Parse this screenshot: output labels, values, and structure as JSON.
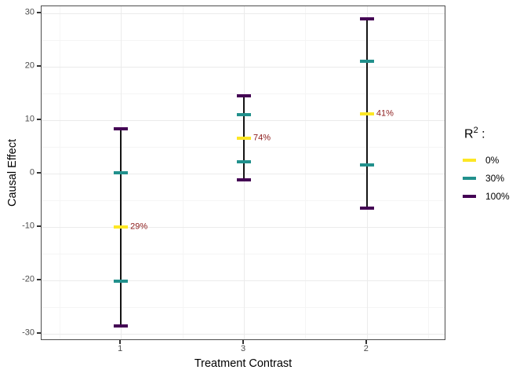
{
  "chart_data": {
    "type": "errorbar",
    "title": "",
    "xlabel": "Treatment Contrast",
    "ylabel": "Causal Effect",
    "x_categories": [
      "1",
      "3",
      "2"
    ],
    "yticks": [
      30,
      20,
      10,
      0,
      -10,
      -20,
      -30
    ],
    "ylim": [
      -31.3,
      31.3
    ],
    "grid": "major and minor, light gray on white, panel framed",
    "legend": {
      "position": "right",
      "title_base": "R",
      "title_sup": "2",
      "title_sep": " :",
      "entries": [
        {
          "label": "0%",
          "color": "#FDE725"
        },
        {
          "label": "30%",
          "color": "#21908C"
        },
        {
          "label": "100%",
          "color": "#440154"
        }
      ]
    },
    "groups": [
      {
        "category": "1",
        "estimate": -10,
        "estimate_label": "29%",
        "interval_30": [
          -20.2,
          0.2
        ],
        "interval_100": [
          -28.5,
          8.4
        ]
      },
      {
        "category": "3",
        "estimate": 6.6,
        "estimate_label": "74%",
        "interval_30": [
          2.2,
          11
        ],
        "interval_100": [
          -1.2,
          14.6
        ]
      },
      {
        "category": "2",
        "estimate": 11.2,
        "estimate_label": "41%",
        "interval_30": [
          1.6,
          21
        ],
        "interval_100": [
          -6.4,
          29
        ]
      }
    ],
    "style": {
      "errorbar_line_color": "#141414",
      "estimate_label_color": "#8b1a1a",
      "axis_text_color": "#4d4d4d",
      "panel_border_color": "#4d4d4d"
    }
  }
}
